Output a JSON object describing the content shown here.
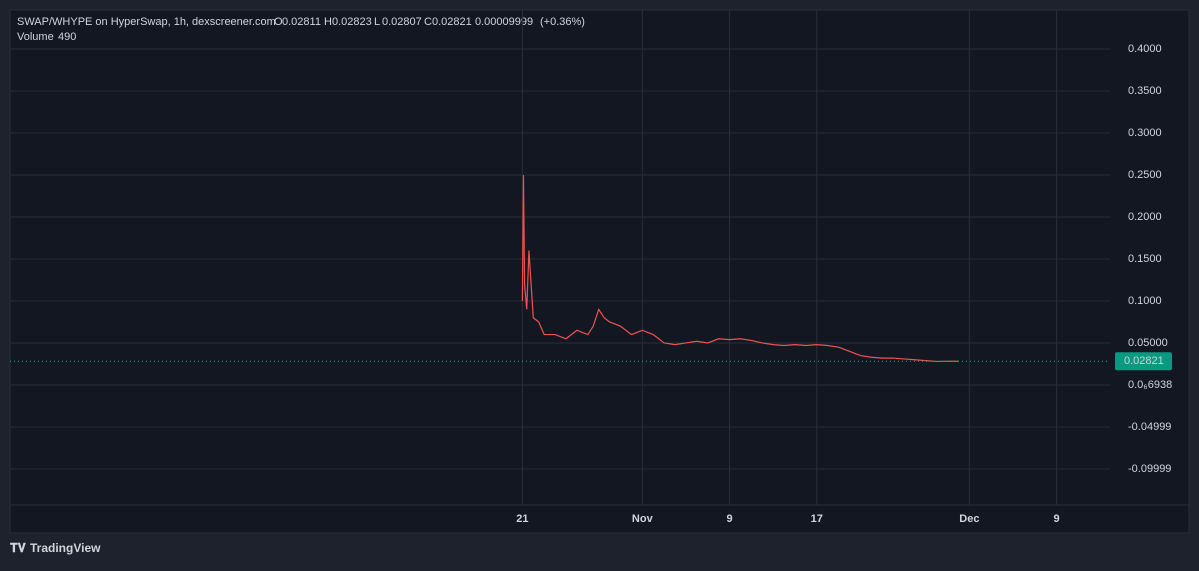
{
  "chart_data": {
    "type": "line",
    "title": "SWAP/WHYPE on HyperSwap, 1h, dexscreener.com",
    "ohlc": [
      {
        "label": "O",
        "value": 0.02811
      },
      {
        "label": "H",
        "value": 0.02823
      },
      {
        "label": "L",
        "value": 0.02807
      },
      {
        "label": "C",
        "value": 0.02821
      }
    ],
    "change": 9.999e-05,
    "change_pct": {
      "value": 0.36,
      "label": "(+0.36%)"
    },
    "volume_label": "Volume",
    "volume": 490,
    "last_price": 0.02821,
    "color": "#ef5350",
    "grid": true,
    "xlim": [
      -47,
      53.9
    ],
    "ylim": [
      -0.1429,
      0.4464
    ],
    "xticks": [
      {
        "value": 0,
        "label": "21"
      },
      {
        "value": 11,
        "label": "Nov"
      },
      {
        "value": 19,
        "label": "9"
      },
      {
        "value": 27,
        "label": "17"
      },
      {
        "value": 41,
        "label": "Dec"
      },
      {
        "value": 49,
        "label": "9"
      }
    ],
    "yticks": [
      {
        "value": 0.4,
        "label": "0.4000"
      },
      {
        "value": 0.35,
        "label": "0.3500"
      },
      {
        "value": 0.3,
        "label": "0.3000"
      },
      {
        "value": 0.25,
        "label": "0.2500"
      },
      {
        "value": 0.2,
        "label": "0.2000"
      },
      {
        "value": 0.15,
        "label": "0.1500"
      },
      {
        "value": 0.1,
        "label": "0.1000"
      },
      {
        "value": 0.05,
        "label": "0.05000"
      },
      {
        "value": 6.938e-07,
        "label": "0.0₆6938"
      },
      {
        "value": -0.04999,
        "label": "-0.04999"
      },
      {
        "value": -0.09999,
        "label": "-0.09999"
      }
    ],
    "x": [
      0,
      0.1,
      0.2,
      0.4,
      0.6,
      0.8,
      1,
      1.5,
      2,
      3,
      4,
      5,
      6,
      6.5,
      7,
      7.5,
      8,
      9,
      10,
      11,
      12,
      13,
      14,
      15,
      16,
      17,
      18,
      19,
      20,
      21,
      22,
      23,
      24,
      25,
      26,
      27,
      28,
      29,
      30,
      31,
      32,
      33,
      34,
      35,
      36,
      37,
      38,
      39,
      40
    ],
    "values": [
      0.1,
      0.25,
      0.12,
      0.09,
      0.16,
      0.12,
      0.08,
      0.075,
      0.06,
      0.06,
      0.055,
      0.065,
      0.06,
      0.07,
      0.09,
      0.08,
      0.075,
      0.07,
      0.06,
      0.065,
      0.06,
      0.05,
      0.048,
      0.05,
      0.052,
      0.05,
      0.055,
      0.054,
      0.055,
      0.053,
      0.05,
      0.048,
      0.047,
      0.048,
      0.047,
      0.048,
      0.047,
      0.045,
      0.04,
      0.035,
      0.033,
      0.032,
      0.032,
      0.031,
      0.03,
      0.029,
      0.028,
      0.0283,
      0.02821
    ]
  },
  "footer": {
    "brand": "TradingView"
  }
}
